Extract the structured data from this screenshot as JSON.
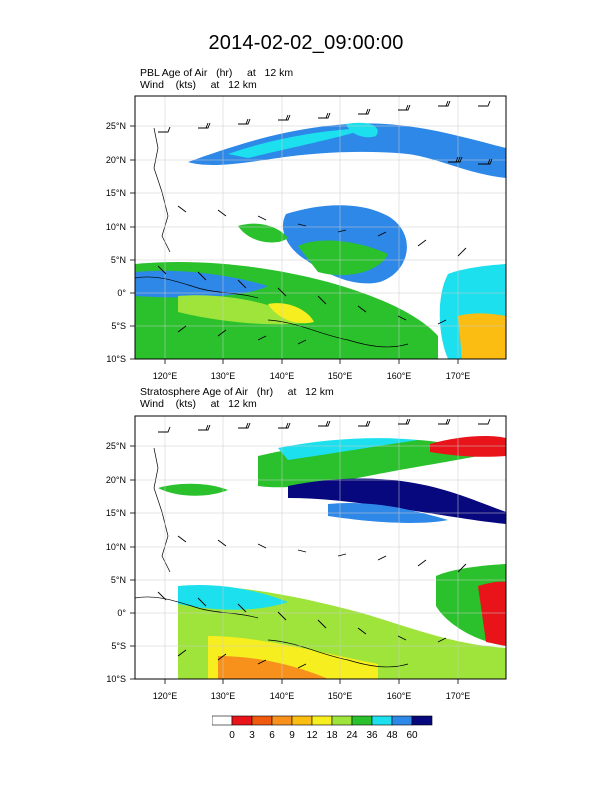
{
  "title": "2014-02-02_09:00:00",
  "panels": [
    {
      "field_line": "PBL Age of Air   (hr)     at   12 km",
      "wind_line": "Wind    (kts)     at   12 km"
    },
    {
      "field_line": "Stratosphere Age of Air   (hr)     at   12 km",
      "wind_line": "Wind    (kts)     at   12 km"
    }
  ],
  "axes": {
    "lon_ticks": [
      "120°E",
      "130°E",
      "140°E",
      "150°E",
      "160°E",
      "170°E"
    ],
    "lat_ticks": [
      "25°N",
      "20°N",
      "15°N",
      "10°N",
      "5°N",
      "0°",
      "5°S",
      "10°S"
    ]
  },
  "colorbar": {
    "labels": [
      "0",
      "3",
      "6",
      "9",
      "12",
      "18",
      "24",
      "36",
      "48",
      "60"
    ],
    "colors": [
      "#ffffff",
      "#e8141a",
      "#f05a0e",
      "#f7911c",
      "#fbbd12",
      "#f6ee1f",
      "#9ee43a",
      "#2ac12d",
      "#1ce0ee",
      "#2e88e8",
      "#08087e"
    ]
  }
}
